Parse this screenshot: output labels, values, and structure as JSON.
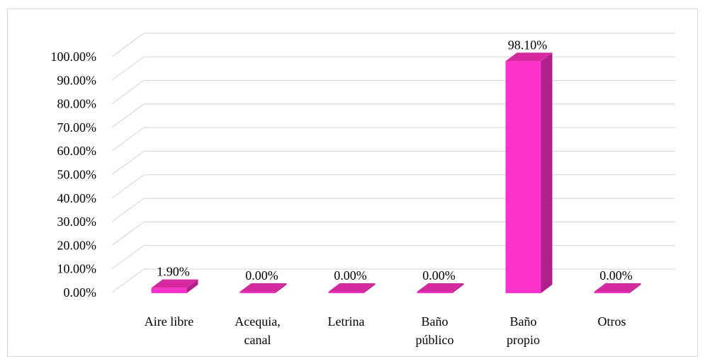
{
  "chart_data": {
    "type": "bar",
    "categories": [
      "Aire libre",
      "Acequia, canal",
      "Letrina",
      "Baño público",
      "Baño propio",
      "Otros"
    ],
    "category_lines": [
      [
        "Aire libre"
      ],
      [
        "Acequia,",
        "canal"
      ],
      [
        "Letrina"
      ],
      [
        "Baño",
        "público"
      ],
      [
        "Baño",
        "propio"
      ],
      [
        "Otros"
      ]
    ],
    "values": [
      1.9,
      0.0,
      0.0,
      0.0,
      98.1,
      0.0
    ],
    "data_labels": [
      "1.90%",
      "0.00%",
      "0.00%",
      "0.00%",
      "98.10%",
      "0.00%"
    ],
    "y_ticks": [
      "0.00%",
      "10.00%",
      "20.00%",
      "30.00%",
      "40.00%",
      "50.00%",
      "60.00%",
      "70.00%",
      "80.00%",
      "90.00%",
      "100.00%"
    ],
    "ylim": [
      0,
      100
    ],
    "grid": true,
    "three_d": true,
    "colors": {
      "bar_front": "#ff33cc",
      "bar_side": "#b0208c",
      "bar_top": "#d6289f",
      "grid": "#d9d9d9"
    }
  }
}
